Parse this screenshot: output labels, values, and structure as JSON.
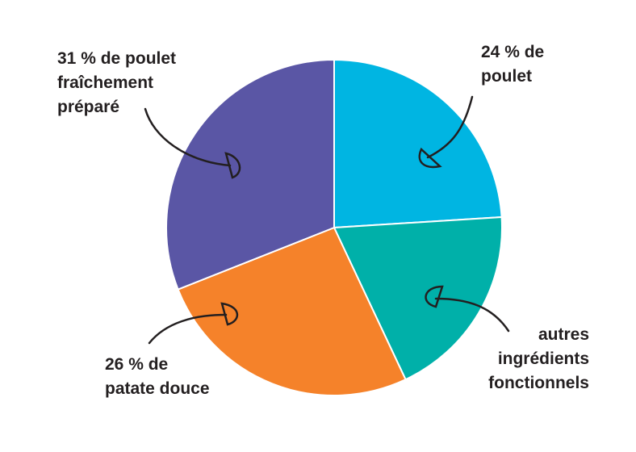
{
  "chart_data": {
    "type": "pie",
    "categories": [
      "24 % de poulet",
      "autres ingrédients fonctionnels",
      "26 % de patate douce",
      "31 % de poulet fraîchement préparé"
    ],
    "values": [
      24,
      19,
      26,
      31
    ],
    "colors": [
      "#00b5e2",
      "#00b0a9",
      "#f5822a",
      "#5a56a5"
    ]
  }
}
